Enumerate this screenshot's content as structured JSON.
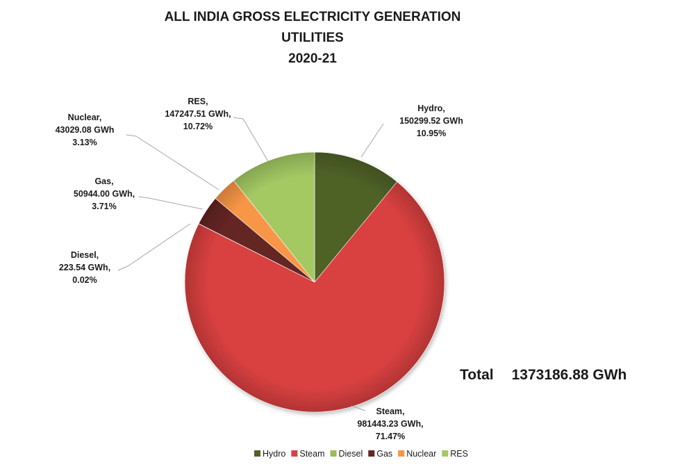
{
  "chart_data": {
    "type": "pie",
    "title_lines": [
      "ALL INDIA GROSS ELECTRICITY GENERATION",
      "UTILITIES",
      "2020-21"
    ],
    "slices": [
      {
        "name": "Hydro",
        "value": 150299.52,
        "value_label": "150299.52 GWh",
        "percent_label": "10.95%",
        "color": "#4f6228"
      },
      {
        "name": "Steam",
        "value": 981443.23,
        "value_label": "981443.23 GWh,",
        "percent_label": "71.47%",
        "color": "#d94040"
      },
      {
        "name": "Diesel",
        "value": 223.54,
        "value_label": "223.54 GWh,",
        "percent_label": "0.02%",
        "color": "#9bbb59"
      },
      {
        "name": "Gas",
        "value": 50944.0,
        "value_label": "50944.00 GWh,",
        "percent_label": "3.71%",
        "color": "#632523"
      },
      {
        "name": "Nuclear",
        "value": 43029.08,
        "value_label": "43029.08 GWh",
        "percent_label": "3.13%",
        "color": "#f79646"
      },
      {
        "name": "RES",
        "value": 147247.51,
        "value_label": "147247.51 GWh,",
        "percent_label": "10.72%",
        "color": "#a4c964"
      }
    ],
    "total_label": "Total",
    "total_value": "1373186.88 GWh",
    "legend": [
      "Hydro",
      "Steam",
      "Diesel",
      "Gas",
      "Nuclear",
      "RES"
    ],
    "legend_position": "bottom"
  }
}
